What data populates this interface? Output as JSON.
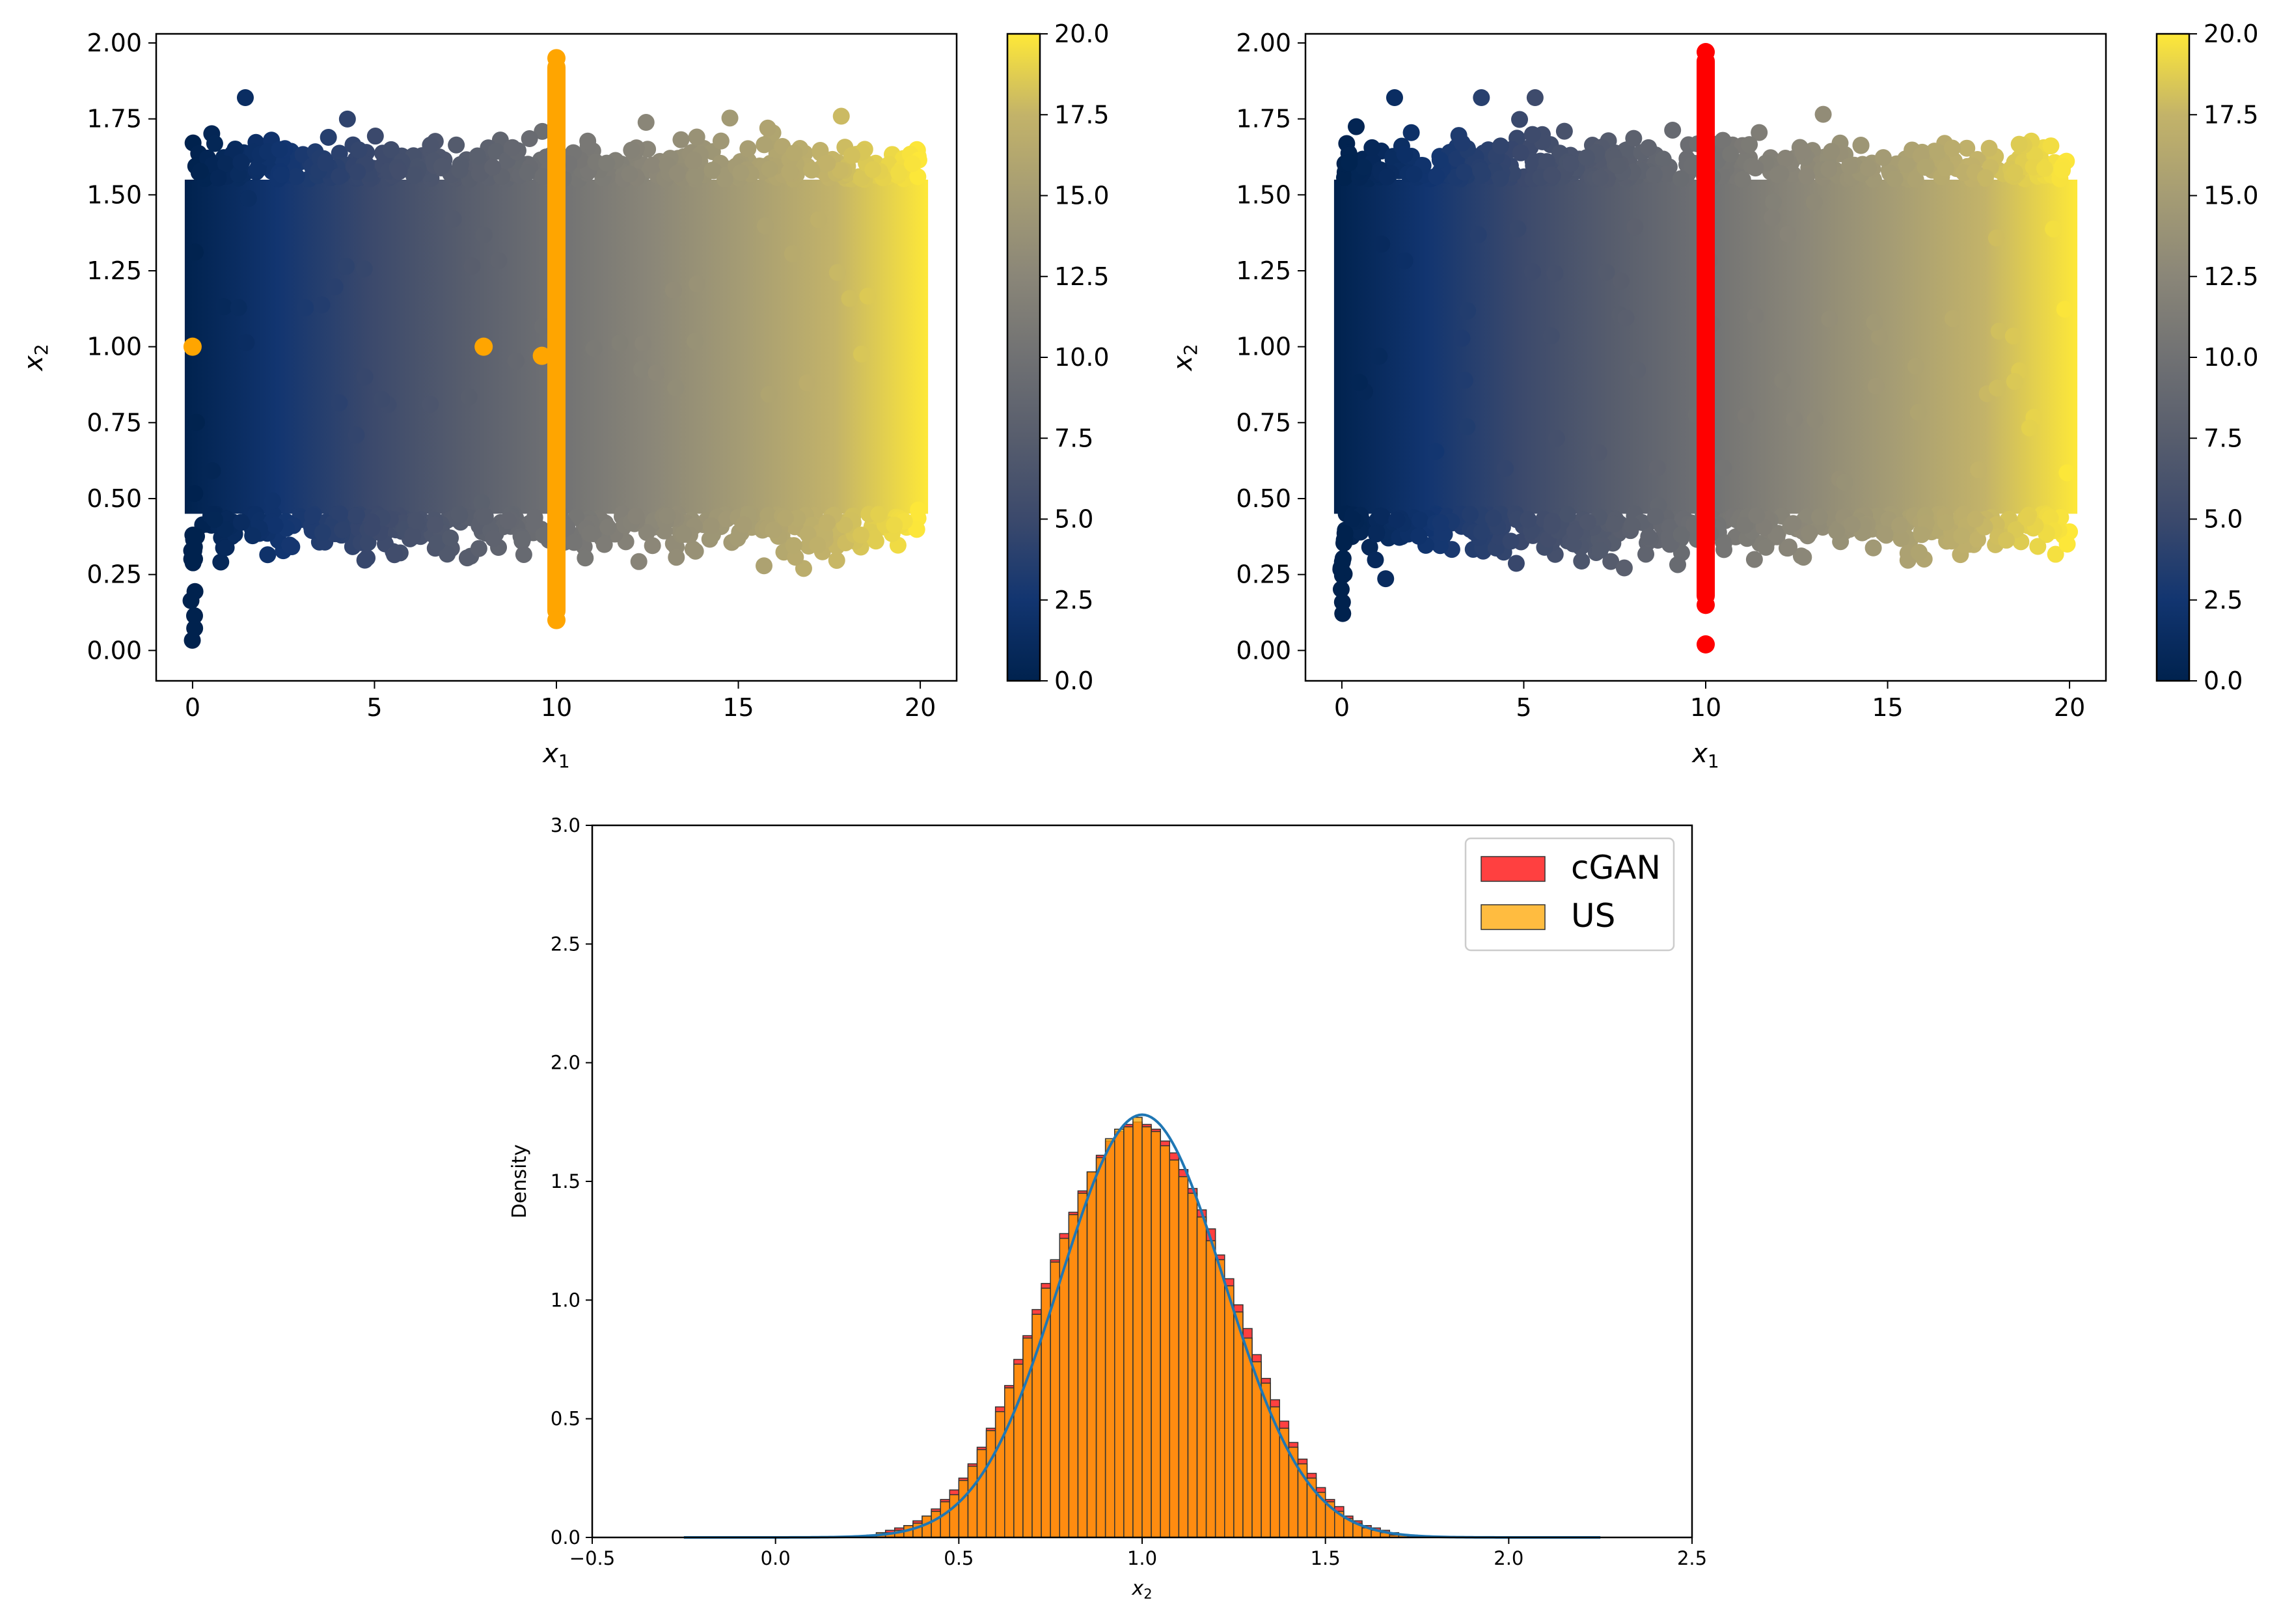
{
  "figure": {
    "background": "#ffffff"
  },
  "chart_data": [
    {
      "id": "scatter-left",
      "type": "scatter",
      "title": "",
      "xlabel": "x1",
      "ylabel": "x2",
      "xlim": [
        -1,
        21
      ],
      "ylim": [
        -0.1,
        2.03
      ],
      "xticks": [
        0,
        5,
        10,
        15,
        20
      ],
      "xtick_labels": [
        "0",
        "5",
        "10",
        "15",
        "20"
      ],
      "yticks": [
        0,
        0.25,
        0.5,
        0.75,
        1.0,
        1.25,
        1.5,
        1.75,
        2.0
      ],
      "ytick_labels": [
        "0.00",
        "0.25",
        "0.50",
        "0.75",
        "1.00",
        "1.25",
        "1.50",
        "1.75",
        "2.00"
      ],
      "grid": false,
      "point_cloud": {
        "x_range": [
          0,
          20
        ],
        "y_center": 1.0,
        "y_range_typical": [
          0.45,
          1.55
        ],
        "y_extremes": [
          0.0,
          1.82
        ],
        "colored_by": "x1"
      },
      "highlight": {
        "color": "#ffa500",
        "x": 10.0,
        "y_range": [
          0.1,
          1.95
        ]
      },
      "highlight_points": [
        [
          0.0,
          1.0
        ],
        [
          8.0,
          1.0
        ],
        [
          9.6,
          0.97
        ]
      ],
      "colorbar": {
        "colormap": "cividis",
        "range": [
          0.0,
          20.0
        ],
        "ticks": [
          0,
          2.5,
          5,
          7.5,
          10,
          12.5,
          15,
          17.5,
          20
        ],
        "tick_labels": [
          "0.0",
          "2.5",
          "5.0",
          "7.5",
          "10.0",
          "12.5",
          "15.0",
          "17.5",
          "20.0"
        ]
      }
    },
    {
      "id": "scatter-right",
      "type": "scatter",
      "title": "",
      "xlabel": "x1",
      "ylabel": "x2",
      "xlim": [
        -1,
        21
      ],
      "ylim": [
        -0.1,
        2.03
      ],
      "xticks": [
        0,
        5,
        10,
        15,
        20
      ],
      "xtick_labels": [
        "0",
        "5",
        "10",
        "15",
        "20"
      ],
      "yticks": [
        0,
        0.25,
        0.5,
        0.75,
        1.0,
        1.25,
        1.5,
        1.75,
        2.0
      ],
      "ytick_labels": [
        "0.00",
        "0.25",
        "0.50",
        "0.75",
        "1.00",
        "1.25",
        "1.50",
        "1.75",
        "2.00"
      ],
      "grid": false,
      "point_cloud": {
        "x_range": [
          0,
          20
        ],
        "y_center": 1.0,
        "y_range_typical": [
          0.45,
          1.55
        ],
        "y_extremes": [
          0.0,
          1.82
        ],
        "colored_by": "x1"
      },
      "highlight": {
        "color": "#ff0000",
        "x": 10.0,
        "y_range": [
          0.15,
          1.97
        ]
      },
      "highlight_points": [
        [
          10.0,
          0.02
        ]
      ],
      "colorbar": {
        "colormap": "cividis",
        "range": [
          0.0,
          20.0
        ],
        "ticks": [
          0,
          2.5,
          5,
          7.5,
          10,
          12.5,
          15,
          17.5,
          20
        ],
        "tick_labels": [
          "0.0",
          "2.5",
          "5.0",
          "7.5",
          "10.0",
          "12.5",
          "15.0",
          "17.5",
          "20.0"
        ]
      }
    },
    {
      "id": "histogram",
      "type": "bar",
      "title": "",
      "xlabel": "x2",
      "ylabel": "Density",
      "xlim": [
        -0.5,
        2.5
      ],
      "ylim": [
        0,
        3.0
      ],
      "xticks": [
        -0.5,
        0.0,
        0.5,
        1.0,
        1.5,
        2.0,
        2.5
      ],
      "xtick_labels": [
        "−0.5",
        "0.0",
        "0.5",
        "1.0",
        "1.5",
        "2.0",
        "2.5"
      ],
      "yticks": [
        0,
        0.5,
        1.0,
        1.5,
        2.0,
        2.5,
        3.0
      ],
      "ytick_labels": [
        "0.0",
        "0.5",
        "1.0",
        "1.5",
        "2.0",
        "2.5",
        "3.0"
      ],
      "grid": false,
      "legend": {
        "placement": "upper-right",
        "entries": [
          "cGAN",
          "US"
        ]
      },
      "bin_range": [
        0.25,
        1.75
      ],
      "bin_count": 60,
      "series": [
        {
          "name": "cGAN",
          "color": "#ff0000",
          "values": [
            0.01,
            0.02,
            0.03,
            0.04,
            0.05,
            0.07,
            0.09,
            0.12,
            0.16,
            0.2,
            0.25,
            0.31,
            0.38,
            0.46,
            0.55,
            0.64,
            0.75,
            0.85,
            0.96,
            1.07,
            1.17,
            1.28,
            1.37,
            1.46,
            1.54,
            1.61,
            1.67,
            1.71,
            1.74,
            1.75,
            1.74,
            1.72,
            1.67,
            1.62,
            1.55,
            1.47,
            1.38,
            1.3,
            1.19,
            1.09,
            0.98,
            0.88,
            0.77,
            0.67,
            0.58,
            0.49,
            0.4,
            0.33,
            0.27,
            0.21,
            0.16,
            0.13,
            0.09,
            0.07,
            0.05,
            0.04,
            0.03,
            0.02,
            0.01,
            0.01
          ]
        },
        {
          "name": "US",
          "color": "#ffa500",
          "values": [
            0.01,
            0.02,
            0.02,
            0.03,
            0.05,
            0.06,
            0.09,
            0.11,
            0.15,
            0.18,
            0.24,
            0.3,
            0.37,
            0.45,
            0.53,
            0.63,
            0.73,
            0.84,
            0.94,
            1.05,
            1.16,
            1.26,
            1.36,
            1.45,
            1.54,
            1.6,
            1.68,
            1.72,
            1.73,
            1.77,
            1.73,
            1.71,
            1.65,
            1.59,
            1.52,
            1.45,
            1.35,
            1.25,
            1.17,
            1.06,
            0.95,
            0.84,
            0.74,
            0.65,
            0.55,
            0.46,
            0.38,
            0.31,
            0.25,
            0.19,
            0.15,
            0.11,
            0.08,
            0.06,
            0.04,
            0.03,
            0.02,
            0.01,
            0.01,
            0.0
          ]
        }
      ],
      "curve": {
        "type": "normal-pdf",
        "mean": 1.0,
        "std": 0.224,
        "x_range": [
          -0.25,
          2.25
        ],
        "color": "#1f77b4"
      }
    }
  ]
}
